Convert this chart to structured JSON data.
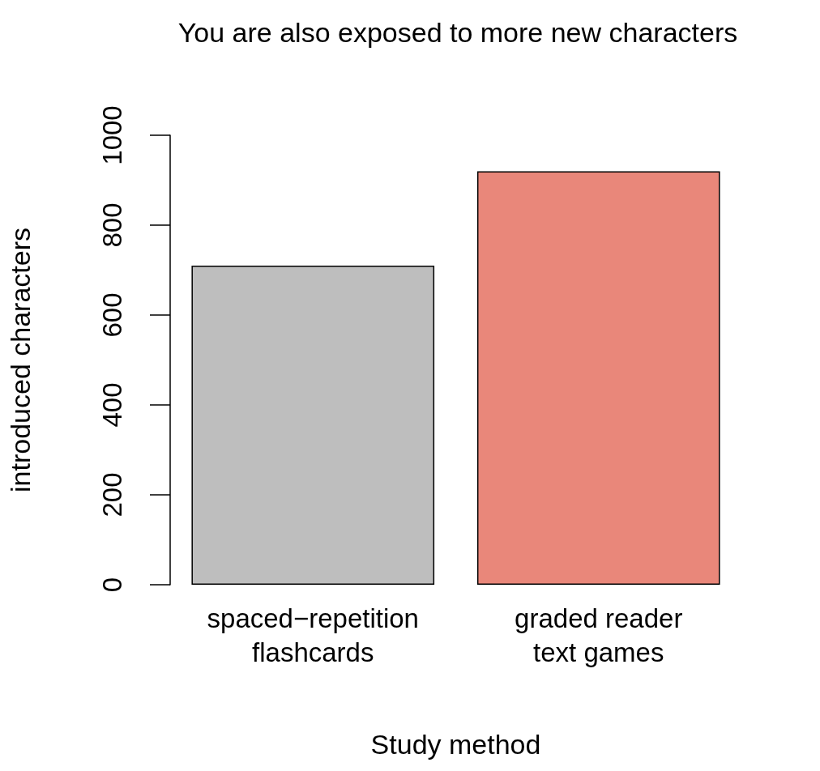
{
  "chart_data": {
    "type": "bar",
    "title": "You are also exposed to more new characters",
    "xlabel": "Study method",
    "ylabel": "introduced characters",
    "categories": [
      "spaced−repetition\nflashcards",
      "graded reader\ntext games"
    ],
    "values": [
      710,
      920
    ],
    "colors": [
      "#bebebe",
      "#e9877a"
    ],
    "ylim": [
      0,
      1000
    ],
    "yticks": [
      0,
      200,
      400,
      600,
      800,
      1000
    ],
    "grid": false
  }
}
